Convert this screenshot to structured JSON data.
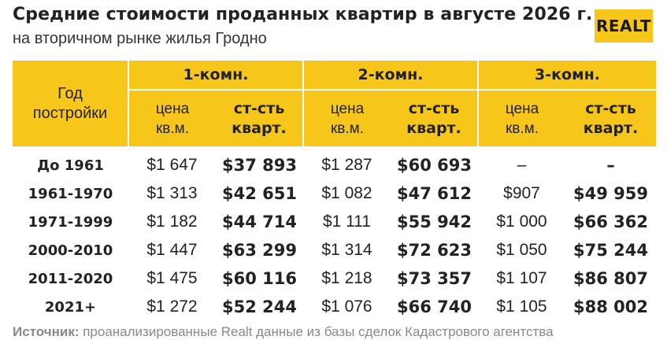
{
  "header": {
    "title": "Средние стоимости проданных квартир в августе 2026 г.",
    "subtitle": "на вторичном рынке жилья Гродно",
    "logo": "REALT"
  },
  "table": {
    "year_header": "Год постройки",
    "groups": [
      "1-комн.",
      "2-комн.",
      "3-комн."
    ],
    "sub_price": "цена кв.м.",
    "sub_total": "ст-сть кварт.",
    "rows": [
      {
        "year": "До 1961",
        "cells": [
          "$1 647",
          "$37 893",
          "$1 287",
          "$60 693",
          "–",
          "–"
        ]
      },
      {
        "year": "1961-1970",
        "cells": [
          "$1 313",
          "$42 651",
          "$1 082",
          "$47 612",
          "$907",
          "$49 959"
        ]
      },
      {
        "year": "1971-1999",
        "cells": [
          "$1 182",
          "$44 714",
          "$1 111",
          "$55 942",
          "$1 000",
          "$66 362"
        ]
      },
      {
        "year": "2000-2010",
        "cells": [
          "$1 447",
          "$63 299",
          "$1 314",
          "$72 623",
          "$1 050",
          "$75 244"
        ]
      },
      {
        "year": "2011-2020",
        "cells": [
          "$1 475",
          "$60 116",
          "$1 218",
          "$73 357",
          "$1 107",
          "$86 807"
        ]
      },
      {
        "year": "2021+",
        "cells": [
          "$1 272",
          "$52 244",
          "$1 076",
          "$66 740",
          "$1 105",
          "$88 002"
        ]
      }
    ]
  },
  "source": {
    "label": "Источник:",
    "text": " проанализированные Realt данные из базы сделок Кадастрового агентства"
  },
  "colors": {
    "accent": "#f7c61a",
    "text": "#222222",
    "muted": "#888888"
  }
}
